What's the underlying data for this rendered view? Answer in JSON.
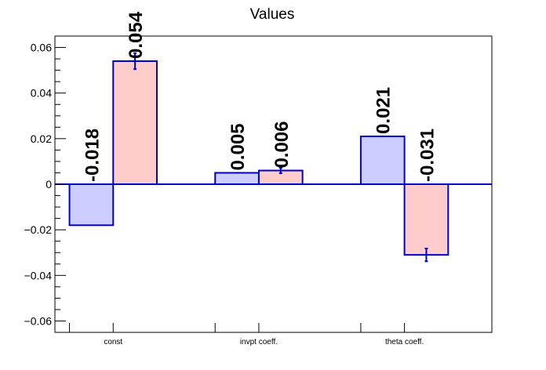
{
  "chart_data": {
    "type": "bar",
    "title": "Values",
    "xlabel": "",
    "ylabel": "",
    "categories": [
      "const",
      "invpt coeff.",
      "theta coeff."
    ],
    "ylim": [
      -0.065,
      0.065
    ],
    "yticks": [
      -0.06,
      -0.04,
      -0.02,
      0,
      0.02,
      0.04,
      0.06
    ],
    "ytick_labels": [
      "−0.06",
      "−0.04",
      "−0.02",
      "0",
      "0.02",
      "0.04",
      "0.06"
    ],
    "grid": false,
    "legend": "none",
    "series": [
      {
        "values": [
          -0.018,
          0.005,
          0.021
        ],
        "labels": [
          "-0.018",
          "0.005",
          "0.021"
        ],
        "errors": [
          0.0,
          0.0,
          0.0
        ],
        "fill": "#ccccff",
        "stroke": "#0000cc"
      },
      {
        "values": [
          0.054,
          0.006,
          -0.031
        ],
        "labels": [
          "0.054",
          "0.006",
          "-0.031"
        ],
        "errors": [
          0.0035,
          0.0012,
          0.0028
        ],
        "fill": "#ffcccc",
        "stroke": "#0000cc"
      }
    ]
  }
}
